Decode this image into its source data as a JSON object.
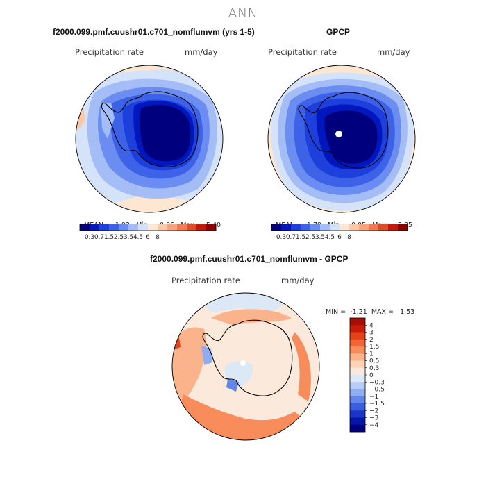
{
  "figure": {
    "title": "ANN"
  },
  "panels": [
    {
      "title": "f2000.099.pmf.cuushr01.c701_nomflumvm (yrs 1-5)",
      "variable": "Precipitation rate",
      "units": "mm/day",
      "stats": {
        "mean_label": "MEAN=",
        "mean": "1.92",
        "min_label": "Min=",
        "min": "0.06",
        "max_label": "Max=",
        "max": "5.40"
      }
    },
    {
      "title": "GPCP",
      "variable": "Precipitation rate",
      "units": "mm/day",
      "stats": {
        "mean_label": "MEAN=",
        "mean": "1.79",
        "min_label": "Min=",
        "min": "0.05",
        "max_label": "Max=",
        "max": "3.85"
      }
    },
    {
      "title": "f2000.099.pmf.cuushr01.c701_nomflumvm - GPCP",
      "variable": "Precipitation rate",
      "units": "mm/day",
      "stats": {
        "min_label": "MIN =",
        "min": "-1.21",
        "max_label": "MAX =",
        "max": "1.53"
      }
    }
  ],
  "chart_data": [
    {
      "type": "heatmap",
      "projection": "south-polar-stereographic",
      "title": "f2000.099.pmf.cuushr01.c701_nomflumvm (yrs 1-5)",
      "variable": "Precipitation rate",
      "units": "mm/day",
      "mean": 1.92,
      "min": 0.06,
      "max": 5.4,
      "colorbar_levels": [
        0.3,
        0.7,
        1.5,
        2.5,
        3.5,
        4.5,
        6,
        8
      ],
      "colorbar_tick_labels": [
        "0.3",
        "0.7",
        "1.5",
        "2.5",
        "3.5",
        "4.5",
        "6",
        "8"
      ],
      "colorbar_colors": [
        "#00007f",
        "#0017bd",
        "#1d3fdc",
        "#3d62e8",
        "#6b8cf0",
        "#a4bdf6",
        "#d5e3fa",
        "#fde6d2",
        "#fbc8a8",
        "#f8a47f",
        "#f17a54",
        "#e14a27",
        "#c21a0e",
        "#8a0000"
      ]
    },
    {
      "type": "heatmap",
      "projection": "south-polar-stereographic",
      "title": "GPCP",
      "variable": "Precipitation rate",
      "units": "mm/day",
      "mean": 1.79,
      "min": 0.05,
      "max": 3.85,
      "colorbar_levels": [
        0.3,
        0.7,
        1.5,
        2.5,
        3.5,
        4.5,
        6,
        8
      ],
      "colorbar_tick_labels": [
        "0.3",
        "0.7",
        "1.5",
        "2.5",
        "3.5",
        "4.5",
        "6",
        "8"
      ],
      "colorbar_colors": [
        "#00007f",
        "#0017bd",
        "#1d3fdc",
        "#3d62e8",
        "#6b8cf0",
        "#a4bdf6",
        "#d5e3fa",
        "#fde6d2",
        "#fbc8a8",
        "#f8a47f",
        "#f17a54",
        "#e14a27",
        "#c21a0e",
        "#8a0000"
      ]
    },
    {
      "type": "heatmap",
      "projection": "south-polar-stereographic",
      "title": "f2000.099.pmf.cuushr01.c701_nomflumvm - GPCP",
      "variable": "Precipitation rate",
      "units": "mm/day",
      "min": -1.21,
      "max": 1.53,
      "colorbar_orientation": "vertical",
      "colorbar_levels": [
        4,
        3,
        2,
        1.5,
        1,
        0.5,
        0.3,
        0,
        -0.3,
        -0.5,
        -1,
        -1.5,
        -2,
        -3,
        -4
      ],
      "colorbar_tick_labels": [
        "4",
        "3",
        "2",
        "1.5",
        "1",
        "0.5",
        "0.3",
        "0",
        "−0.3",
        "−0.5",
        "−1",
        "−1.5",
        "−2",
        "−3",
        "−4"
      ],
      "colorbar_colors": [
        "#a50f07",
        "#c91d0c",
        "#e3421b",
        "#f26535",
        "#f88c5a",
        "#fbb38c",
        "#fdd3b8",
        "#fbe9dc",
        "#dde8f7",
        "#b8cef6",
        "#8fadf2",
        "#6486ec",
        "#3b5de0",
        "#1a35c8",
        "#0515a7",
        "#00007f"
      ]
    }
  ]
}
